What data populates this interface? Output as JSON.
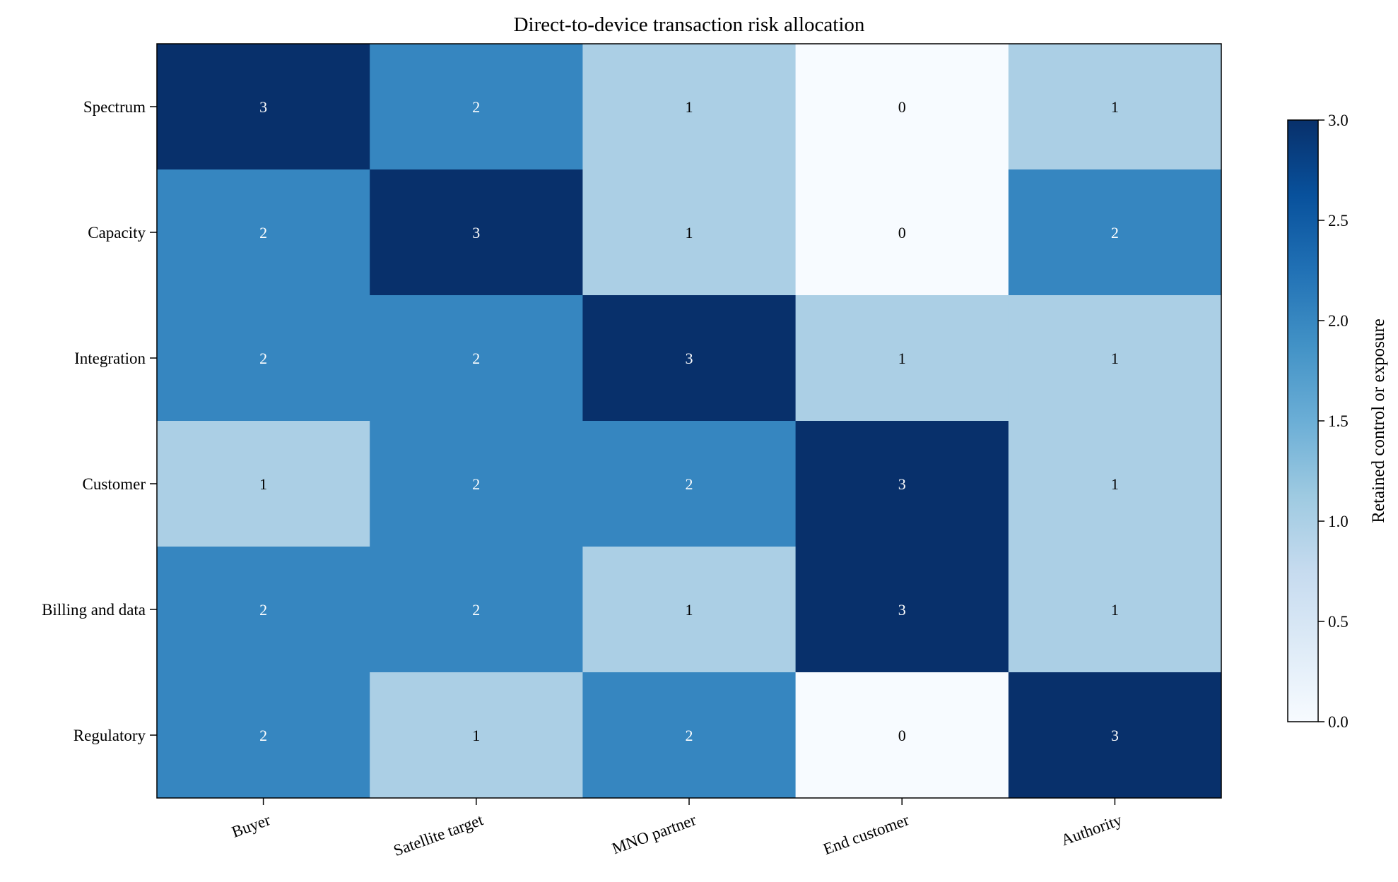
{
  "chart_data": {
    "type": "heatmap",
    "title": "Direct-to-device transaction risk allocation",
    "columns": [
      "Buyer",
      "Satellite target",
      "MNO partner",
      "End customer",
      "Authority"
    ],
    "rows": [
      "Spectrum",
      "Capacity",
      "Integration",
      "Customer",
      "Billing and data",
      "Regulatory"
    ],
    "values": [
      [
        3,
        2,
        1,
        0,
        1
      ],
      [
        2,
        3,
        1,
        0,
        2
      ],
      [
        2,
        2,
        3,
        1,
        1
      ],
      [
        1,
        2,
        2,
        3,
        1
      ],
      [
        2,
        2,
        1,
        3,
        1
      ],
      [
        2,
        1,
        2,
        0,
        3
      ]
    ],
    "color_scale": {
      "name": "Blues",
      "vmin": 0,
      "vmax": 3,
      "level_colors": {
        "0": "#f7fbff",
        "1": "#abcfe5",
        "2": "#3686c0",
        "3": "#08306b"
      },
      "label": "Retained control or exposure",
      "ticks": [
        "0.0",
        "0.5",
        "1.0",
        "1.5",
        "2.0",
        "2.5",
        "3.0"
      ]
    },
    "annotation_colors": {
      "on_light": "#000000",
      "on_dark": "#ffffff"
    },
    "grid": false,
    "colorbar_position": "right"
  }
}
